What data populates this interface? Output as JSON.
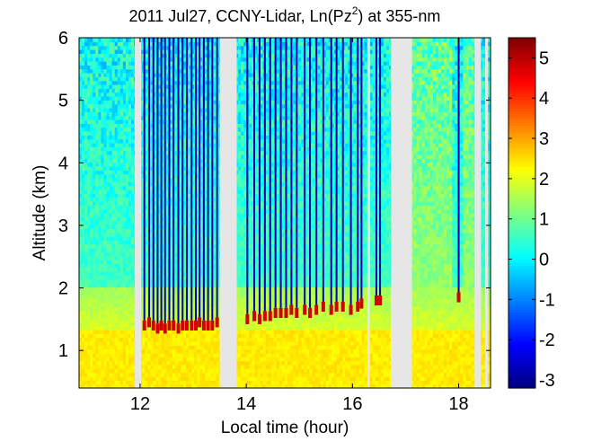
{
  "chart_data": {
    "type": "heatmap",
    "title": {
      "prefix": "2011 Jul27, CCNY-Lidar, Ln(Pz",
      "superscript": "2",
      "suffix": ") at 355-nm"
    },
    "xlabel": "Local time (hour)",
    "ylabel": "Altitude (km)",
    "xlim": [
      10.85,
      18.6
    ],
    "ylim": [
      0.4,
      6.0
    ],
    "x_ticks": [
      12,
      14,
      16,
      18
    ],
    "y_ticks": [
      1,
      2,
      3,
      4,
      5,
      6
    ],
    "colorbar": {
      "min": -3.2,
      "max": 5.5,
      "ticks": [
        -3,
        -2,
        -1,
        0,
        1,
        2,
        3,
        4,
        5
      ],
      "colormap": "jet"
    },
    "data_gaps_hours": [
      [
        11.9,
        12.02
      ],
      [
        13.5,
        13.82
      ],
      [
        16.28,
        16.33
      ],
      [
        16.72,
        17.12
      ],
      [
        18.3,
        18.42
      ],
      [
        18.5,
        18.55
      ]
    ],
    "boundary_layer_top_km": 1.4,
    "cloud_streaks": {
      "times_hours": [
        12.08,
        12.17,
        12.25,
        12.33,
        12.4,
        12.47,
        12.55,
        12.63,
        12.72,
        12.8,
        12.88,
        12.97,
        13.05,
        13.12,
        13.2,
        13.28,
        13.36,
        13.45,
        14.02,
        14.15,
        14.25,
        14.35,
        14.45,
        14.55,
        14.65,
        14.75,
        14.85,
        14.95,
        15.1,
        15.2,
        15.32,
        15.45,
        15.6,
        15.7,
        15.82,
        15.97,
        16.1,
        16.17,
        16.45,
        16.52,
        18.0
      ],
      "base_altitude_km": [
        1.4,
        1.45,
        1.4,
        1.35,
        1.4,
        1.35,
        1.4,
        1.4,
        1.35,
        1.4,
        1.4,
        1.4,
        1.4,
        1.45,
        1.4,
        1.4,
        1.4,
        1.45,
        1.5,
        1.55,
        1.5,
        1.55,
        1.55,
        1.6,
        1.6,
        1.6,
        1.65,
        1.6,
        1.65,
        1.6,
        1.65,
        1.7,
        1.65,
        1.7,
        1.7,
        1.65,
        1.7,
        1.75,
        1.8,
        1.8,
        1.85
      ],
      "width_hours": 0.03
    },
    "signal_levels": {
      "boundary_layer": 2.4,
      "transition_layer": 1.9,
      "free_troposphere": 0.6,
      "clear_interval_free_troposphere": 1.3,
      "cloud_attenuated": -2.8,
      "cloud_base": 4.8
    }
  }
}
